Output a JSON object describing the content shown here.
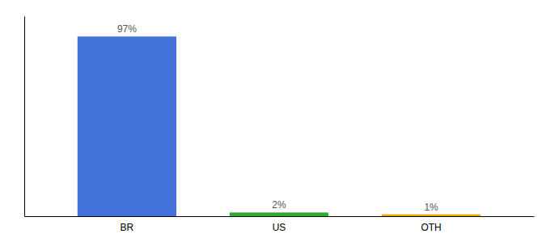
{
  "chart_data": {
    "type": "bar",
    "categories": [
      "BR",
      "US",
      "OTH"
    ],
    "values": [
      97,
      2,
      1
    ],
    "value_labels": [
      "97%",
      "2%",
      "1%"
    ],
    "colors": [
      "#4472db",
      "#2eaa2e",
      "#f0a500"
    ],
    "ylim": [
      0,
      108
    ],
    "yticks": [],
    "data_labels": true,
    "tick_labels": "x"
  }
}
